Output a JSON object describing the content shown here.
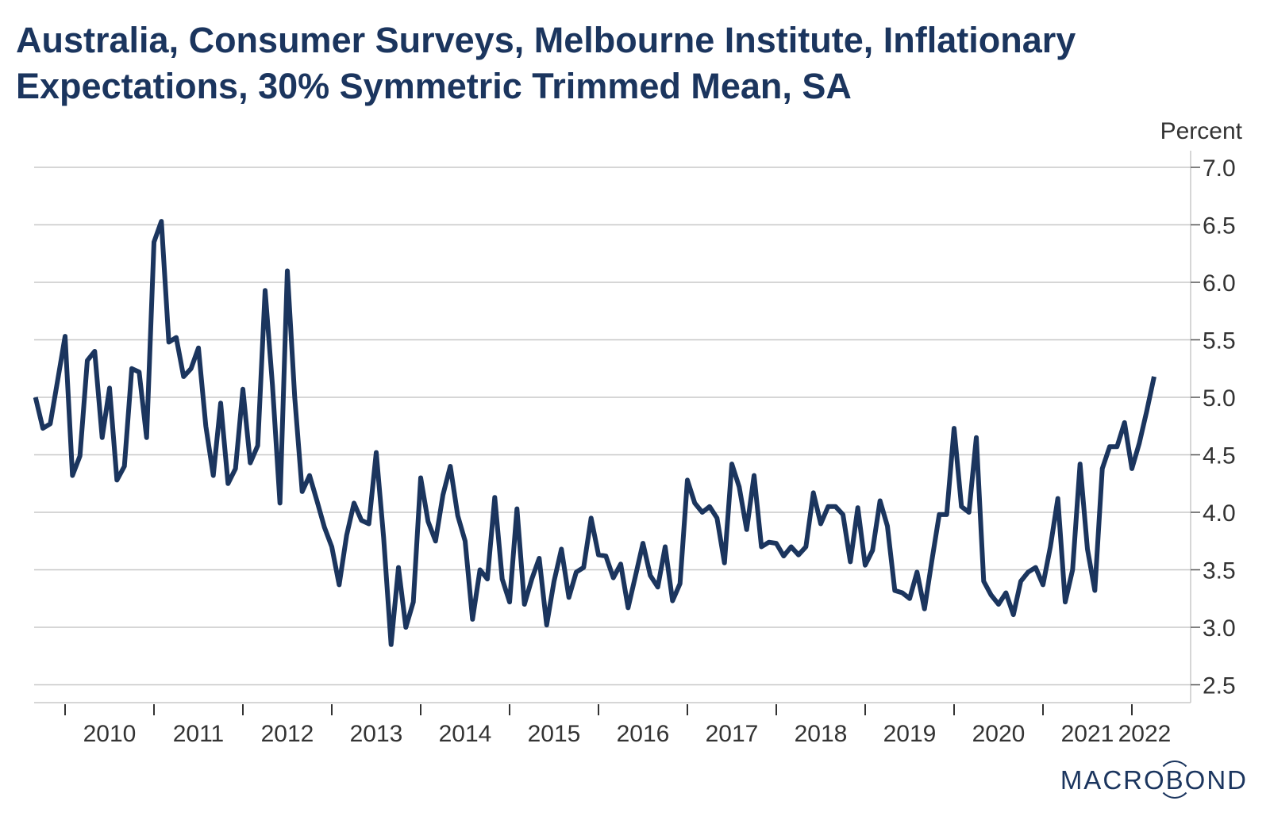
{
  "chart_data": {
    "type": "line",
    "title": "Australia, Consumer Surveys, Melbourne Institute, Inflationary Expectations, 30% Symmetric Trimmed Mean, SA",
    "ylabel": "Percent",
    "xlabel": "",
    "ylim": [
      2.35,
      7.15
    ],
    "yticks": [
      2.5,
      3.0,
      3.5,
      4.0,
      4.5,
      5.0,
      5.5,
      6.0,
      6.5,
      7.0
    ],
    "ytick_labels": [
      "2.5",
      "3.0",
      "3.5",
      "4.0",
      "4.5",
      "5.0",
      "5.5",
      "6.0",
      "6.5",
      "7.0"
    ],
    "x_categories": [
      "2010",
      "2011",
      "2012",
      "2013",
      "2014",
      "2015",
      "2016",
      "2017",
      "2018",
      "2019",
      "2020",
      "2021",
      "2022"
    ],
    "x_start": "2009-09",
    "x_end": "2022-04",
    "frequency": "monthly",
    "grid": true,
    "y_axis_side": "right",
    "series": [
      {
        "name": "Inflationary Expectations, 30% Symmetric Trimmed Mean, SA",
        "color": "#1b355e",
        "values": [
          5.0,
          4.73,
          4.77,
          5.15,
          5.53,
          4.32,
          4.49,
          5.32,
          5.4,
          4.65,
          5.08,
          4.28,
          4.4,
          5.25,
          5.22,
          4.65,
          6.35,
          6.53,
          5.48,
          5.52,
          5.18,
          5.25,
          5.43,
          4.75,
          4.32,
          4.95,
          4.25,
          4.38,
          5.07,
          4.43,
          4.58,
          5.93,
          5.1,
          4.08,
          6.1,
          5.0,
          4.18,
          4.32,
          4.1,
          3.87,
          3.7,
          3.37,
          3.8,
          4.08,
          3.93,
          3.9,
          4.52,
          3.78,
          2.85,
          3.52,
          3.0,
          3.22,
          4.3,
          3.92,
          3.75,
          4.15,
          4.4,
          3.97,
          3.75,
          3.07,
          3.5,
          3.42,
          4.13,
          3.42,
          3.22,
          4.03,
          3.2,
          3.42,
          3.6,
          3.02,
          3.4,
          3.68,
          3.26,
          3.48,
          3.52,
          3.95,
          3.63,
          3.62,
          3.43,
          3.55,
          3.17,
          3.45,
          3.73,
          3.45,
          3.35,
          3.7,
          3.23,
          3.38,
          4.28,
          4.08,
          4.0,
          4.05,
          3.95,
          3.56,
          4.42,
          4.22,
          3.85,
          4.32,
          3.7,
          3.74,
          3.73,
          3.62,
          3.7,
          3.63,
          3.7,
          4.17,
          3.9,
          4.05,
          4.05,
          3.98,
          3.57,
          4.04,
          3.54,
          3.67,
          4.1,
          3.88,
          3.32,
          3.3,
          3.25,
          3.48,
          3.16,
          3.58,
          3.98,
          3.98,
          4.73,
          4.05,
          4.0,
          4.65,
          3.4,
          3.28,
          3.2,
          3.3,
          3.11,
          3.4,
          3.48,
          3.52,
          3.37,
          3.7,
          4.12,
          3.22,
          3.5,
          4.42,
          3.68,
          3.32,
          4.38,
          4.57,
          4.57,
          4.78,
          4.38,
          4.6,
          4.88,
          5.18
        ]
      }
    ]
  },
  "branding": {
    "logo_text": "MACROBOND"
  }
}
